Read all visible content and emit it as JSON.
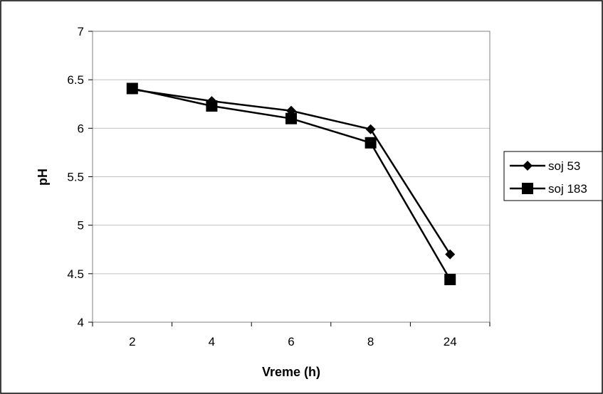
{
  "chart_data": {
    "type": "line",
    "categories": [
      "2",
      "4",
      "6",
      "8",
      "24"
    ],
    "series": [
      {
        "name": "soj 53",
        "marker": "diamond",
        "values": [
          6.4,
          6.28,
          6.18,
          5.99,
          4.7
        ]
      },
      {
        "name": "soj 183",
        "marker": "square",
        "values": [
          6.41,
          6.23,
          6.1,
          5.85,
          4.44
        ]
      }
    ],
    "title": "",
    "xlabel": "Vreme (h)",
    "ylabel": "pH",
    "ylim": [
      4,
      7
    ],
    "yticks": [
      "4",
      "4.5",
      "5",
      "5.5",
      "6",
      "6.5",
      "7"
    ],
    "grid": true,
    "legend_position": "right",
    "colors": {
      "line": "#000000",
      "grid": "#c0c0c0",
      "frame": "#808080"
    }
  }
}
